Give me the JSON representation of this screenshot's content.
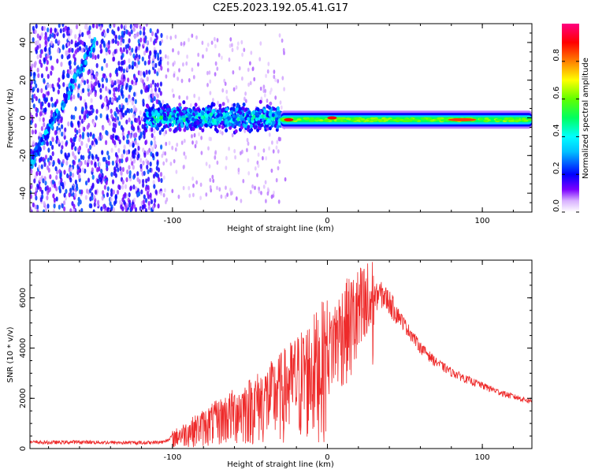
{
  "title": "C2E5.2023.192.05.41.G17",
  "chart_data": [
    {
      "type": "heatmap",
      "xlabel": "Height of straight line (km)",
      "ylabel": "Frequency (Hz)",
      "xlim": [
        -192,
        132
      ],
      "ylim": [
        -50,
        50
      ],
      "xticks": [
        -100,
        0,
        100
      ],
      "yticks": [
        -40,
        -20,
        0,
        20,
        40
      ],
      "colorbar": {
        "label": "Normalized spectral amplitude",
        "range": [
          0,
          1
        ],
        "ticks": [
          0.0,
          0.2,
          0.4,
          0.6,
          0.8
        ],
        "colormap": [
          "#ffffff",
          "#7a00ff",
          "#0000ff",
          "#00ffff",
          "#00ff00",
          "#ffff00",
          "#ff8000",
          "#ff0000",
          "#ff0080"
        ]
      },
      "features": [
        {
          "name": "noise-region",
          "x_range": [
            -192,
            -107
          ],
          "freq_range": [
            -50,
            50
          ],
          "amplitude": 0.25
        },
        {
          "name": "diagonal-streak",
          "x_start": -192,
          "x_end": -150,
          "freq_start": -25,
          "freq_end": 40,
          "amplitude": 0.35
        },
        {
          "name": "broad-band",
          "x_range": [
            -118,
            -30
          ],
          "freq_center": 0,
          "freq_halfwidth": 9,
          "amplitude": 0.45
        },
        {
          "name": "narrow-band",
          "x_range": [
            -30,
            132
          ],
          "freq_center": -1,
          "freq_halfwidth": 3,
          "amplitude": 0.55
        },
        {
          "name": "peak-1",
          "x": -25,
          "freq": -1,
          "amplitude": 0.9
        },
        {
          "name": "peak-2",
          "x": 3,
          "freq": 0,
          "amplitude": 0.9
        },
        {
          "name": "peak-3",
          "x": 87,
          "freq": -1,
          "amplitude": 0.85
        }
      ]
    },
    {
      "type": "line",
      "xlabel": "Height of straight line (km)",
      "ylabel": "SNR (10 * v/v)",
      "xlim": [
        -192,
        132
      ],
      "ylim": [
        0,
        7500
      ],
      "xticks": [
        -100,
        0,
        100
      ],
      "yticks": [
        0,
        2000,
        4000,
        6000
      ],
      "series": [
        {
          "name": "SNR",
          "color": "#ee2a2a",
          "x": [
            -192,
            -180,
            -160,
            -140,
            -120,
            -105,
            -100,
            -90,
            -80,
            -70,
            -60,
            -50,
            -40,
            -30,
            -20,
            -10,
            0,
            5,
            10,
            20,
            30,
            35,
            40,
            50,
            60,
            70,
            80,
            90,
            100,
            110,
            120,
            132
          ],
          "y": [
            250,
            240,
            260,
            240,
            230,
            260,
            500,
            800,
            1100,
            1400,
            1700,
            2000,
            2300,
            2700,
            3200,
            3700,
            4300,
            4800,
            5300,
            5800,
            6200,
            6300,
            6000,
            5000,
            4100,
            3500,
            3100,
            2800,
            2550,
            2300,
            2100,
            1900
          ]
        }
      ]
    }
  ]
}
